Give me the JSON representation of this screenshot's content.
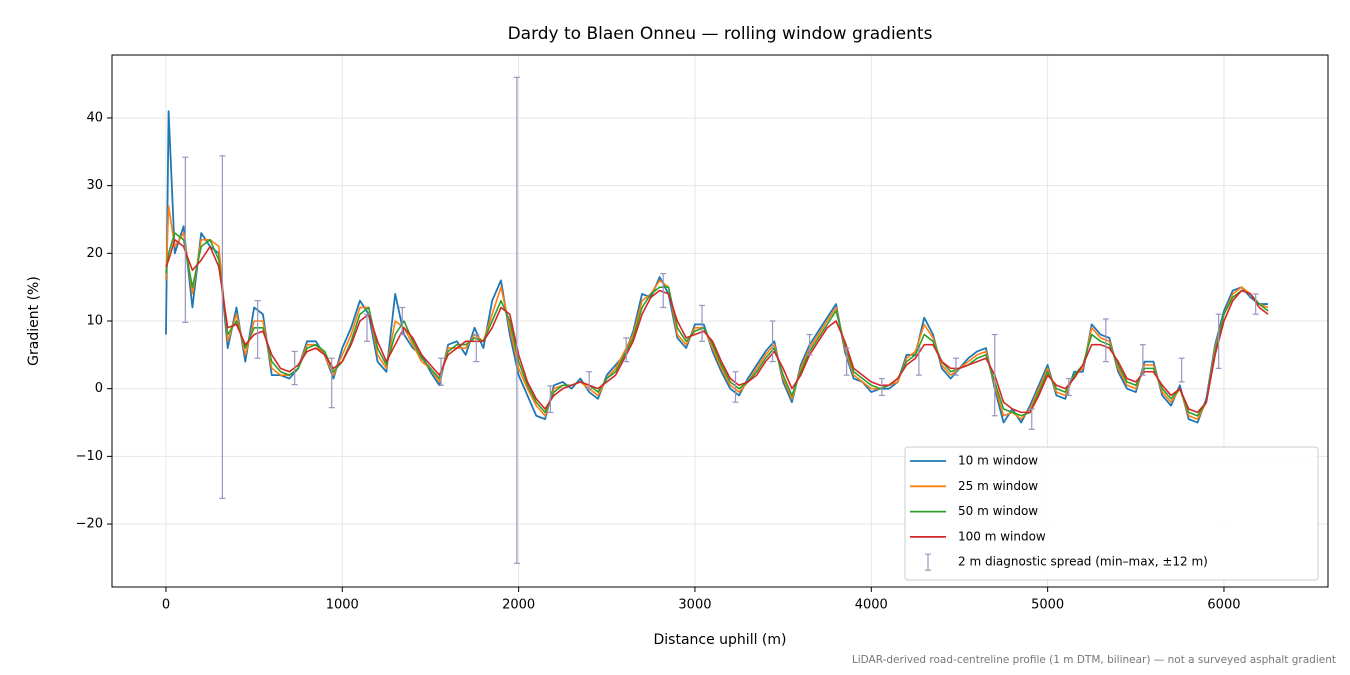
{
  "chart_data": {
    "type": "line",
    "title": "Dardy to Blaen Onneu — rolling window gradients",
    "xlabel": "Distance uphill (m)",
    "ylabel": "Gradient (%)",
    "footnote": "LiDAR-derived road-centreline profile (1 m DTM, bilinear) — not a surveyed asphalt gradient",
    "xlim": [
      -306,
      6590
    ],
    "ylim": [
      -29.3,
      49.3
    ],
    "xticks": [
      0,
      1000,
      2000,
      3000,
      4000,
      5000,
      6000
    ],
    "yticks": [
      {
        "value": -20,
        "label": "−20"
      },
      {
        "value": -10,
        "label": "−10"
      },
      0,
      10,
      20,
      30,
      40
    ],
    "grid": true,
    "legend": "lower right",
    "x": [
      0,
      15,
      50,
      100,
      150,
      200,
      250,
      300,
      350,
      400,
      450,
      500,
      550,
      600,
      650,
      700,
      750,
      800,
      850,
      900,
      950,
      1000,
      1050,
      1100,
      1150,
      1200,
      1250,
      1300,
      1350,
      1400,
      1450,
      1500,
      1550,
      1600,
      1650,
      1700,
      1750,
      1800,
      1850,
      1900,
      1950,
      2000,
      2050,
      2100,
      2150,
      2200,
      2250,
      2300,
      2350,
      2400,
      2450,
      2500,
      2550,
      2600,
      2650,
      2700,
      2750,
      2800,
      2850,
      2900,
      2950,
      3000,
      3050,
      3100,
      3150,
      3200,
      3250,
      3300,
      3350,
      3400,
      3450,
      3500,
      3550,
      3600,
      3650,
      3700,
      3750,
      3800,
      3850,
      3900,
      3950,
      4000,
      4050,
      4100,
      4150,
      4200,
      4250,
      4300,
      4350,
      4400,
      4450,
      4500,
      4550,
      4600,
      4650,
      4700,
      4750,
      4800,
      4850,
      4900,
      4950,
      5000,
      5050,
      5100,
      5150,
      5200,
      5250,
      5300,
      5350,
      5400,
      5450,
      5500,
      5550,
      5600,
      5650,
      5700,
      5750,
      5800,
      5850,
      5900,
      5950,
      6000,
      6050,
      6100,
      6150,
      6200,
      6250
    ],
    "series": [
      {
        "name": "10 m window",
        "color": "#1f77b4",
        "values": [
          8,
          41,
          20,
          24,
          12,
          23,
          21,
          20,
          6,
          12,
          4,
          12,
          11,
          2,
          2,
          1.5,
          3,
          7,
          7,
          5,
          1.5,
          6,
          9,
          13,
          11,
          4,
          2.5,
          14,
          8,
          6,
          5,
          2.5,
          0.5,
          6.5,
          7,
          5,
          9,
          6,
          13,
          16,
          8,
          2,
          -1,
          -4,
          -4.5,
          0.5,
          1,
          0,
          1.5,
          -0.5,
          -1.5,
          2,
          3.5,
          5,
          8.5,
          14,
          13.5,
          16.5,
          14,
          7.5,
          6,
          9.5,
          9.5,
          5.5,
          2.5,
          0,
          -1,
          1.5,
          3.5,
          5.5,
          7,
          1,
          -2,
          3.5,
          6.5,
          8.5,
          10.5,
          12.5,
          5.5,
          1.5,
          1,
          -0.5,
          0,
          0,
          1,
          5,
          5,
          10.5,
          8,
          3,
          1.5,
          3,
          4.5,
          5.5,
          6,
          0,
          -5,
          -3,
          -5,
          -2.5,
          0.5,
          3.5,
          -1,
          -1.5,
          2.5,
          2.5,
          9.5,
          8,
          7.5,
          2.5,
          0,
          -0.5,
          4,
          4,
          -1,
          -2.5,
          0.5,
          -4.5,
          -5,
          -1.5,
          6.5,
          11.5,
          14.5,
          15,
          13.5,
          12.5,
          12.5
        ]
      },
      {
        "name": "25 m window",
        "color": "#ff7f0e",
        "values": [
          16,
          27,
          21,
          23,
          14,
          22,
          22,
          21,
          7,
          11,
          5,
          10,
          10,
          3,
          2,
          2,
          3,
          6.5,
          6.5,
          5,
          2,
          5,
          8,
          12,
          12,
          5,
          3,
          10,
          9,
          6.5,
          4,
          3,
          1,
          6,
          6,
          6,
          8,
          7,
          11,
          15,
          9,
          3,
          0,
          -2.5,
          -4,
          0,
          0.5,
          0.5,
          1,
          0,
          -1,
          1.5,
          3,
          5.5,
          8,
          13,
          14,
          16,
          15,
          8,
          6.5,
          9,
          9,
          6,
          3,
          0.5,
          -0.5,
          1,
          3,
          5,
          6.5,
          1.5,
          -1.5,
          3,
          6,
          8,
          10,
          12,
          6,
          2,
          1,
          0,
          0,
          0.5,
          1,
          4.5,
          5.5,
          9.5,
          7.5,
          3.5,
          2,
          3,
          4,
          5,
          5.5,
          0.5,
          -4,
          -3.5,
          -4.5,
          -3,
          0,
          3,
          -0.5,
          -1,
          2,
          3,
          9,
          7.5,
          7,
          3,
          0.5,
          0,
          3.5,
          3.5,
          -0.5,
          -2,
          0,
          -4,
          -4.5,
          -2,
          6,
          11,
          14,
          15,
          14,
          12.5,
          12
        ]
      },
      {
        "name": "50 m window",
        "color": "#2ca02c",
        "values": [
          17,
          20,
          23,
          22,
          15,
          21,
          22,
          19,
          8,
          10,
          6,
          9,
          9,
          4,
          2.5,
          2,
          3,
          6,
          6.5,
          5.5,
          2.5,
          4,
          7,
          11,
          12,
          6,
          3.5,
          8,
          10,
          7,
          4.5,
          3,
          1.5,
          5.5,
          6.5,
          6.5,
          7.5,
          7,
          10,
          13,
          10,
          4,
          0.5,
          -2,
          -3.5,
          -0.5,
          0.5,
          0.5,
          1,
          0.5,
          -0.5,
          1.5,
          2.5,
          5,
          7.5,
          12,
          14,
          15,
          15,
          9,
          7,
          8.5,
          9,
          6.5,
          3.5,
          1,
          0,
          1,
          2.5,
          4.5,
          6,
          2,
          -1,
          2.5,
          5.5,
          7.5,
          9.5,
          11.5,
          6.5,
          2.5,
          1.5,
          0.5,
          0,
          0.5,
          1.5,
          4,
          5,
          8,
          7,
          4,
          2.5,
          3,
          3.5,
          4.5,
          5,
          1,
          -3,
          -3.5,
          -4,
          -3.5,
          -0.5,
          2.5,
          0,
          -0.5,
          2,
          3.5,
          8,
          7,
          6.5,
          3.5,
          1,
          0.5,
          3,
          3,
          0,
          -1.5,
          0,
          -3.5,
          -4,
          -2,
          5.5,
          11,
          13.5,
          14.5,
          14,
          12.5,
          11.5
        ]
      },
      {
        "name": "100 m window",
        "color": "#d62728",
        "values": [
          18,
          19,
          22,
          21,
          17.5,
          19,
          21,
          18,
          9,
          9.5,
          6.5,
          8,
          8.5,
          5,
          3,
          2.5,
          3.5,
          5.5,
          6,
          5,
          3,
          4,
          6.5,
          10,
          11,
          7,
          4,
          6.5,
          9,
          7.5,
          5,
          3.5,
          2,
          5,
          6,
          7,
          7,
          7,
          9,
          12,
          11,
          5,
          1,
          -1.5,
          -3,
          -1,
          0,
          0.5,
          1,
          0.5,
          0,
          1,
          2,
          4.5,
          7,
          11,
          13.5,
          14.5,
          14,
          10,
          7.5,
          8,
          8.5,
          7,
          4,
          1.5,
          0.5,
          1,
          2,
          4,
          5.5,
          3,
          0,
          2,
          5,
          7,
          9,
          10,
          7,
          3,
          2,
          1,
          0.5,
          0.5,
          1.5,
          3.5,
          4.5,
          6.5,
          6.5,
          4,
          3,
          3,
          3.5,
          4,
          4.5,
          2,
          -2,
          -3,
          -3.5,
          -3.5,
          -1,
          2,
          0.5,
          0,
          1.5,
          3.5,
          6.5,
          6.5,
          6,
          4,
          1.5,
          1,
          2.5,
          2.5,
          0.5,
          -1,
          0,
          -3,
          -3.5,
          -2,
          5,
          10,
          13,
          14.5,
          14,
          12,
          11
        ]
      }
    ],
    "errorbars": {
      "name": "2 m diagnostic spread (min–max, ±12 m)",
      "color": "#9a94bf",
      "x": [
        110,
        320,
        520,
        730,
        940,
        1140,
        1340,
        1560,
        1760,
        1990,
        2180,
        2400,
        2610,
        2820,
        3040,
        3230,
        3440,
        3650,
        3860,
        4060,
        4270,
        4480,
        4700,
        4910,
        5120,
        5330,
        5540,
        5760,
        5970,
        6180
      ],
      "low": [
        9.8,
        -16.2,
        4.5,
        0.6,
        -2.8,
        7,
        8,
        0.5,
        4,
        -25.8,
        -3.5,
        0,
        4,
        12,
        7,
        -2,
        4,
        5,
        2,
        -1,
        2,
        2,
        -4,
        -6,
        -1,
        4,
        2,
        1,
        3,
        11
      ],
      "high": [
        34.2,
        34.4,
        13,
        5.5,
        4.5,
        11,
        12,
        4.5,
        8,
        46,
        0.4,
        2.5,
        7.5,
        17,
        12.3,
        2.5,
        10,
        8,
        6,
        1.5,
        6,
        4.5,
        8,
        -3,
        1.5,
        10.3,
        6.5,
        4.5,
        11,
        14
      ]
    }
  }
}
